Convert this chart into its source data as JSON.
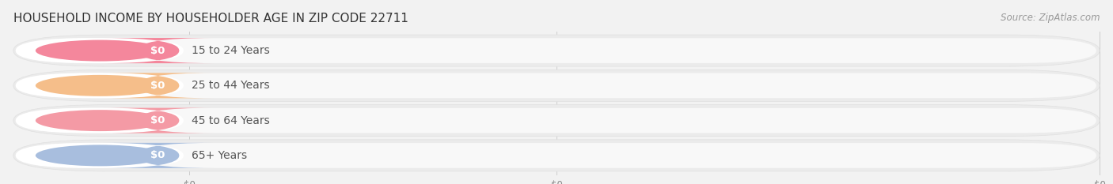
{
  "title": "HOUSEHOLD INCOME BY HOUSEHOLDER AGE IN ZIP CODE 22711",
  "source": "Source: ZipAtlas.com",
  "categories": [
    "15 to 24 Years",
    "25 to 44 Years",
    "45 to 64 Years",
    "65+ Years"
  ],
  "values": [
    0,
    0,
    0,
    0
  ],
  "bar_colors": [
    "#f4879c",
    "#f5be8a",
    "#f49aa5",
    "#a8bede"
  ],
  "bg_color": "#f2f2f2",
  "row_bg_color": "#e8e8e8",
  "row_inner_color": "#f9f9f9",
  "title_fontsize": 11,
  "source_fontsize": 8.5,
  "label_fontsize": 10,
  "value_fontsize": 9.5
}
